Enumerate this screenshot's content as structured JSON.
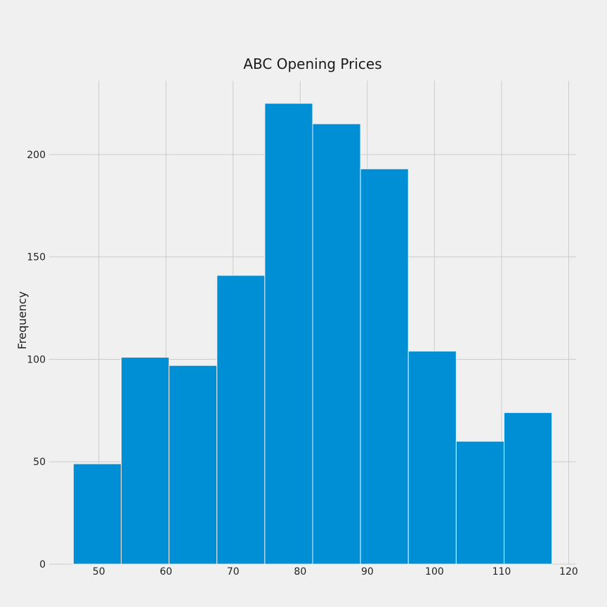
{
  "chart_data": {
    "type": "bar",
    "subtype": "histogram",
    "title": "ABC Opening Prices",
    "xlabel": "",
    "ylabel": "Frequency",
    "bins": [
      {
        "start": 46.2,
        "end": 53.33,
        "count": 49
      },
      {
        "start": 53.33,
        "end": 60.46,
        "count": 101
      },
      {
        "start": 60.46,
        "end": 67.59,
        "count": 97
      },
      {
        "start": 67.59,
        "end": 74.72,
        "count": 141
      },
      {
        "start": 74.72,
        "end": 81.85,
        "count": 225
      },
      {
        "start": 81.85,
        "end": 88.98,
        "count": 215
      },
      {
        "start": 88.98,
        "end": 96.11,
        "count": 193
      },
      {
        "start": 96.11,
        "end": 103.24,
        "count": 104
      },
      {
        "start": 103.24,
        "end": 110.37,
        "count": 60
      },
      {
        "start": 110.37,
        "end": 117.5,
        "count": 74
      }
    ],
    "xlim": [
      42.6,
      121.1
    ],
    "ylim": [
      0,
      236
    ],
    "xticks": [
      50,
      60,
      70,
      80,
      90,
      100,
      110,
      120
    ],
    "yticks": [
      0,
      50,
      100,
      150,
      200
    ],
    "grid": true,
    "bar_color": "#008fd5",
    "background_color": "#f0f0f0",
    "grid_color": "#cbcbcb"
  }
}
